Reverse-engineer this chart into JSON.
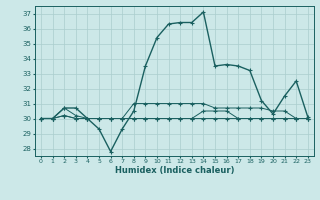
{
  "title": "",
  "xlabel": "Humidex (Indice chaleur)",
  "bg_color": "#cce8e8",
  "grid_color": "#aacece",
  "line_color": "#1a6060",
  "xlim": [
    -0.5,
    23.5
  ],
  "ylim": [
    27.5,
    37.5
  ],
  "yticks": [
    28,
    29,
    30,
    31,
    32,
    33,
    34,
    35,
    36,
    37
  ],
  "xticks": [
    0,
    1,
    2,
    3,
    4,
    5,
    6,
    7,
    8,
    9,
    10,
    11,
    12,
    13,
    14,
    15,
    16,
    17,
    18,
    19,
    20,
    21,
    22,
    23
  ],
  "series": [
    [
      30,
      30,
      30.7,
      30.7,
      30,
      29.3,
      27.8,
      29.3,
      30.5,
      33.5,
      35.4,
      36.3,
      36.4,
      36.4,
      37.1,
      33.5,
      33.6,
      33.5,
      33.2,
      31.2,
      30.3,
      31.5,
      32.5,
      30.1
    ],
    [
      30,
      30,
      30.7,
      30.2,
      30,
      30,
      30,
      30,
      31.0,
      31.0,
      31.0,
      31.0,
      31.0,
      31.0,
      31.0,
      30.7,
      30.7,
      30.7,
      30.7,
      30.7,
      30.5,
      30.5,
      30.0,
      30.0
    ],
    [
      30,
      30,
      30.2,
      30,
      30,
      30,
      30,
      30,
      30,
      30,
      30,
      30,
      30,
      30,
      30,
      30,
      30,
      30,
      30,
      30,
      30,
      30,
      30,
      30
    ],
    [
      30,
      30,
      30.2,
      30,
      30,
      30,
      30,
      30,
      30,
      30,
      30,
      30,
      30,
      30,
      30.5,
      30.5,
      30.5,
      30,
      30,
      30,
      30,
      30,
      30,
      30
    ]
  ]
}
